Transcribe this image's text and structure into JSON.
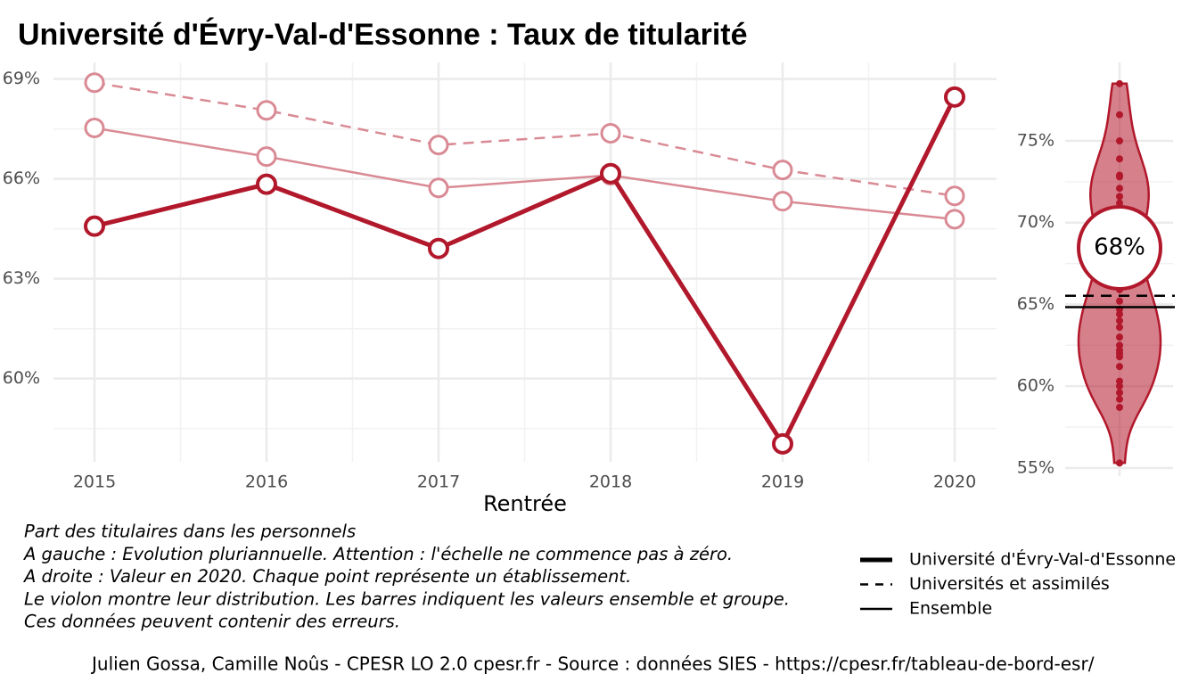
{
  "chart_data": [
    {
      "type": "line",
      "title": "Université d'Évry-Val-d'Essonne  :  Taux de titularité",
      "x_label": "Rentrée",
      "categories": [
        "2015",
        "2016",
        "2017",
        "2018",
        "2019",
        "2020"
      ],
      "ylim": [
        57.5,
        69.5
      ],
      "yticks": [
        {
          "value": 60,
          "label": "60%"
        },
        {
          "value": 63,
          "label": "63%"
        },
        {
          "value": 66,
          "label": "66%"
        },
        {
          "value": 69,
          "label": "69%"
        }
      ],
      "grid": true,
      "series": [
        {
          "name": "Université d'Évry-Val-d'Essonne",
          "color": "#b2182b",
          "line_style": "solid",
          "line_width": 5,
          "values": [
            64.58,
            65.84,
            63.91,
            66.16,
            58.04,
            68.46
          ]
        },
        {
          "name": "Universités et assimilés",
          "color": "#d98a94",
          "line_style": "dashed",
          "line_width": 2.5,
          "values": [
            68.89,
            68.06,
            67.02,
            67.37,
            66.27,
            65.49
          ]
        },
        {
          "name": "Ensemble",
          "color": "#d98a94",
          "line_style": "solid",
          "line_width": 2.5,
          "values": [
            67.53,
            66.67,
            65.73,
            66.11,
            65.33,
            64.79
          ]
        }
      ],
      "notes": [
        "Part des titulaires dans les personnels",
        "A gauche : Evolution pluriannuelle. Attention : l'échelle ne commence pas à zéro.",
        "A droite : Valeur en 2020. Chaque point représente un établissement.",
        "Le violon montre leur distribution. Les barres indiquent les valeurs ensemble et groupe.",
        "Ces données peuvent contenir des erreurs."
      ],
      "source": "Julien Gossa, Camille Noûs - CPESR LO 2.0 cpesr.fr - Source : données SIES - https://cpesr.fr/tableau-de-bord-esr/"
    },
    {
      "type": "violin",
      "ylim": [
        54.5,
        79.8
      ],
      "yticks": [
        {
          "value": 55,
          "label": "55%"
        },
        {
          "value": 60,
          "label": "60%"
        },
        {
          "value": 65,
          "label": "65%"
        },
        {
          "value": 70,
          "label": "70%"
        },
        {
          "value": 75,
          "label": "75%"
        }
      ],
      "color": "#b2182b",
      "values": [
        78.5,
        76.6,
        75.0,
        73.9,
        72.9,
        72.8,
        72.1,
        71.6,
        71.2,
        70.6,
        69.8,
        69.1,
        68.0,
        67.2,
        66.3,
        65.9,
        65.2,
        64.7,
        64.4,
        64.0,
        63.6,
        63.0,
        62.5,
        62.2,
        62.0,
        61.8,
        61.2,
        60.3,
        60.0,
        59.6,
        59.2,
        58.7,
        55.3
      ],
      "highlight": {
        "values": [
          68.46
        ],
        "value_labels": [
          "68%"
        ]
      },
      "reference_lines": [
        {
          "value": 64.83,
          "line_style": "solid"
        },
        {
          "value": 65.53,
          "line_style": "dashed"
        }
      ]
    }
  ]
}
